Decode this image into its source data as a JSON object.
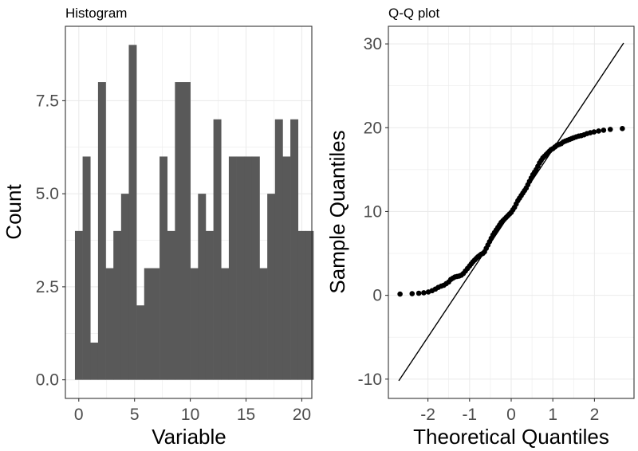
{
  "colors": {
    "bar_fill": "#595959",
    "grid": "#ebebeb",
    "panel_border": "#333333",
    "point": "#000000",
    "line": "#000000",
    "tick_text": "#4d4d4d"
  },
  "chart_data": [
    {
      "type": "bar",
      "title": "Histogram",
      "xlabel": "Variable",
      "ylabel": "Count",
      "xlim": [
        -1.2,
        20.9
      ],
      "ylim": [
        -0.5,
        9.5
      ],
      "xticks": [
        0,
        5,
        10,
        15,
        20
      ],
      "xtick_labels": [
        "0",
        "5",
        "10",
        "15",
        "20"
      ],
      "yticks": [
        0,
        2.5,
        5,
        7.5
      ],
      "ytick_labels": [
        "0.0",
        "2.5",
        "5.0",
        "7.5"
      ],
      "bin_width": 0.69,
      "bin_start": -0.345,
      "values": [
        4,
        6,
        1,
        8,
        3,
        4,
        5,
        9,
        2,
        3,
        3,
        6,
        4,
        8,
        8,
        3,
        5,
        4,
        7,
        3,
        6,
        6,
        6,
        6,
        3,
        5,
        7,
        6,
        7,
        4,
        4
      ],
      "grid": true
    },
    {
      "type": "scatter",
      "title": "Q-Q plot",
      "xlabel": "Theoretical Quantiles",
      "ylabel": "Sample Quantiles",
      "xlim": [
        -2.95,
        2.95
      ],
      "ylim": [
        -12.3,
        32.1
      ],
      "xticks": [
        -2,
        -1,
        0,
        1,
        2
      ],
      "xtick_labels": [
        "-2",
        "-1",
        "0",
        "1",
        "2"
      ],
      "yticks": [
        -10,
        0,
        10,
        20,
        30
      ],
      "ytick_labels": [
        "-10",
        "0",
        "10",
        "20",
        "30"
      ],
      "reference_line": {
        "x": [
          -2.7,
          2.7
        ],
        "y": [
          -10.2,
          30.1
        ]
      },
      "points": [
        [
          -2.67,
          0.15
        ],
        [
          -2.38,
          0.2
        ],
        [
          -2.22,
          0.25
        ],
        [
          -2.1,
          0.3
        ],
        [
          -1.99,
          0.4
        ],
        [
          -1.9,
          0.55
        ],
        [
          -1.82,
          0.75
        ],
        [
          -1.75,
          0.95
        ],
        [
          -1.68,
          1.1
        ],
        [
          -1.62,
          1.2
        ],
        [
          -1.56,
          1.4
        ],
        [
          -1.5,
          1.6
        ],
        [
          -1.45,
          1.9
        ],
        [
          -1.4,
          2.05
        ],
        [
          -1.35,
          2.2
        ],
        [
          -1.3,
          2.25
        ],
        [
          -1.25,
          2.3
        ],
        [
          -1.2,
          2.4
        ],
        [
          -1.15,
          2.6
        ],
        [
          -1.1,
          2.9
        ],
        [
          -1.05,
          3.2
        ],
        [
          -1.0,
          3.5
        ],
        [
          -0.96,
          3.75
        ],
        [
          -0.92,
          4.0
        ],
        [
          -0.88,
          4.2
        ],
        [
          -0.84,
          4.4
        ],
        [
          -0.8,
          4.6
        ],
        [
          -0.76,
          4.75
        ],
        [
          -0.72,
          4.9
        ],
        [
          -0.68,
          5.0
        ],
        [
          -0.64,
          5.2
        ],
        [
          -0.6,
          5.6
        ],
        [
          -0.56,
          6.0
        ],
        [
          -0.52,
          6.4
        ],
        [
          -0.48,
          6.8
        ],
        [
          -0.44,
          7.2
        ],
        [
          -0.4,
          7.5
        ],
        [
          -0.36,
          7.8
        ],
        [
          -0.32,
          8.1
        ],
        [
          -0.28,
          8.4
        ],
        [
          -0.24,
          8.7
        ],
        [
          -0.2,
          8.9
        ],
        [
          -0.16,
          9.1
        ],
        [
          -0.12,
          9.3
        ],
        [
          -0.08,
          9.5
        ],
        [
          -0.04,
          9.7
        ],
        [
          0.0,
          9.9
        ],
        [
          0.04,
          10.2
        ],
        [
          0.08,
          10.5
        ],
        [
          0.12,
          10.9
        ],
        [
          0.16,
          11.3
        ],
        [
          0.2,
          11.6
        ],
        [
          0.24,
          11.9
        ],
        [
          0.28,
          12.2
        ],
        [
          0.32,
          12.5
        ],
        [
          0.36,
          12.8
        ],
        [
          0.4,
          13.2
        ],
        [
          0.44,
          13.6
        ],
        [
          0.48,
          14.0
        ],
        [
          0.52,
          14.4
        ],
        [
          0.56,
          14.7
        ],
        [
          0.6,
          15.0
        ],
        [
          0.64,
          15.4
        ],
        [
          0.68,
          15.8
        ],
        [
          0.72,
          16.1
        ],
        [
          0.76,
          16.4
        ],
        [
          0.8,
          16.6
        ],
        [
          0.84,
          16.8
        ],
        [
          0.88,
          17.0
        ],
        [
          0.92,
          17.2
        ],
        [
          0.96,
          17.4
        ],
        [
          1.0,
          17.5
        ],
        [
          1.05,
          17.7
        ],
        [
          1.1,
          17.9
        ],
        [
          1.15,
          18.0
        ],
        [
          1.2,
          18.1
        ],
        [
          1.25,
          18.3
        ],
        [
          1.3,
          18.4
        ],
        [
          1.35,
          18.5
        ],
        [
          1.4,
          18.6
        ],
        [
          1.45,
          18.7
        ],
        [
          1.5,
          18.8
        ],
        [
          1.56,
          18.9
        ],
        [
          1.62,
          19.0
        ],
        [
          1.68,
          19.05
        ],
        [
          1.75,
          19.15
        ],
        [
          1.82,
          19.3
        ],
        [
          1.9,
          19.4
        ],
        [
          1.99,
          19.5
        ],
        [
          2.1,
          19.6
        ],
        [
          2.22,
          19.7
        ],
        [
          2.38,
          19.8
        ],
        [
          2.67,
          19.9
        ]
      ],
      "grid": true
    }
  ]
}
